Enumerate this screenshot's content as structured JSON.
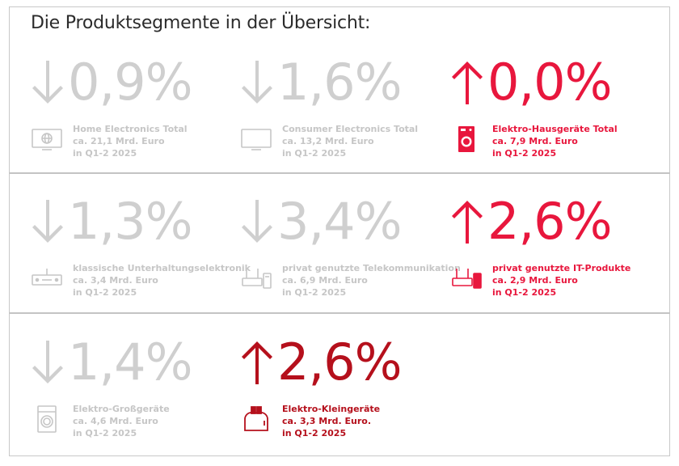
{
  "title": "Die Produktsegmente in der Übersicht:",
  "colors": {
    "gray": "#cfcfcf",
    "red": "#e8173d",
    "dark_red": "#b5101c"
  },
  "segments": [
    {
      "direction": "down",
      "value": "0,9%",
      "name": "Home Electronics Total",
      "amount": "ca. 21,1 Mrd. Euro",
      "period": "in Q1-2 2025",
      "icon": "tv-globe-icon"
    },
    {
      "direction": "down",
      "value": "1,6%",
      "name": "Consumer Electronics Total",
      "amount": "ca. 13,2 Mrd. Euro",
      "period": "in Q1-2 2025",
      "icon": "tv-icon"
    },
    {
      "direction": "up",
      "value": "0,0%",
      "name": "Elektro-Hausgeräte Total",
      "amount": "ca. 7,9 Mrd. Euro",
      "period": "in Q1-2 2025",
      "icon": "washing-machine-icon"
    },
    {
      "direction": "down",
      "value": "1,3%",
      "name": "klassische Unterhaltungselektronik",
      "amount": "ca. 3,4 Mrd. Euro",
      "period": "in Q1-2 2025",
      "icon": "receiver-icon"
    },
    {
      "direction": "down",
      "value": "3,4%",
      "name": "privat genutzte Telekommunikation",
      "amount": "ca. 6,9 Mrd. Euro",
      "period": "in Q1-2 2025",
      "icon": "router-phone-icon"
    },
    {
      "direction": "up",
      "value": "2,6%",
      "name": "privat genutzte IT-Produkte",
      "amount": "ca. 2,9 Mrd. Euro",
      "period": "in Q1-2 2025",
      "icon": "router-phone-icon"
    },
    {
      "direction": "down",
      "value": "1,4%",
      "name": "Elektro-Großgeräte",
      "amount": "ca. 4,6 Mrd. Euro",
      "period": "in Q1-2 2025",
      "icon": "washing-machine-icon"
    },
    {
      "direction": "up",
      "value": "2,6%",
      "name": "Elektro-Kleingeräte",
      "amount": "ca. 3,3 Mrd. Euro.",
      "period": "in Q1-2 2025",
      "icon": "toaster-icon"
    }
  ]
}
